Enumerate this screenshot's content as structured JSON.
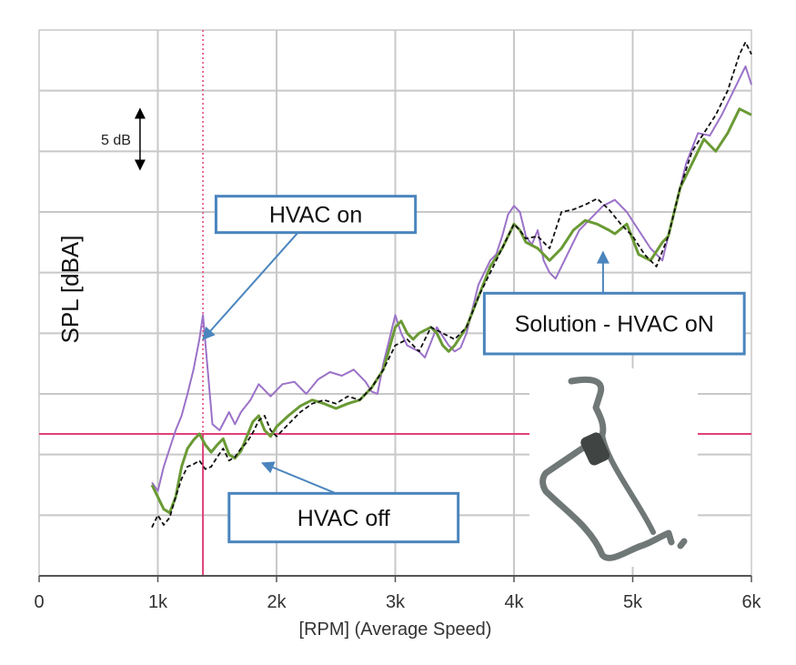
{
  "chart_data": {
    "type": "line",
    "xlabel": "[RPM] (Average Speed)",
    "ylabel": "SPL [dBA]",
    "xlim": [
      0,
      6000
    ],
    "x_tick_labels": [
      "0",
      "1k",
      "2k",
      "3k",
      "4k",
      "5k",
      "6k"
    ],
    "x_ticks": [
      0,
      1000,
      2000,
      3000,
      4000,
      5000,
      6000
    ],
    "ylim": [
      0,
      45
    ],
    "y_ticks_unlabeled": [
      5,
      10,
      15,
      20,
      25,
      30,
      35,
      40,
      45
    ],
    "grid": true,
    "scale_bar": {
      "label": "5 dB",
      "from": 38.5,
      "to": 33.5,
      "x": 850
    },
    "reference_lines": {
      "vertical_rpm": 1380,
      "horizontal_spl": 11.7
    },
    "series": [
      {
        "color": "#9b72c8",
        "style": "solid",
        "points": [
          [
            950,
            7.7
          ],
          [
            1000,
            7
          ],
          [
            1050,
            9
          ],
          [
            1100,
            10.5
          ],
          [
            1150,
            12
          ],
          [
            1200,
            13.2
          ],
          [
            1250,
            15
          ],
          [
            1300,
            17
          ],
          [
            1350,
            19.5
          ],
          [
            1380,
            21.5
          ],
          [
            1420,
            17
          ],
          [
            1460,
            12.5
          ],
          [
            1520,
            12
          ],
          [
            1600,
            13.5
          ],
          [
            1650,
            12.5
          ],
          [
            1700,
            13.5
          ],
          [
            1780,
            14.5
          ],
          [
            1850,
            15.8
          ],
          [
            1950,
            14.8
          ],
          [
            2050,
            15.8
          ],
          [
            2150,
            16
          ],
          [
            2250,
            15
          ],
          [
            2350,
            16.2
          ],
          [
            2450,
            16.8
          ],
          [
            2550,
            16.5
          ],
          [
            2650,
            17
          ],
          [
            2750,
            16
          ],
          [
            2800,
            15.2
          ],
          [
            2850,
            15
          ],
          [
            2900,
            17.5
          ],
          [
            2950,
            19.5
          ],
          [
            3000,
            21.5
          ],
          [
            3050,
            20
          ],
          [
            3100,
            19
          ],
          [
            3200,
            18.5
          ],
          [
            3250,
            18
          ],
          [
            3350,
            20.5
          ],
          [
            3450,
            19
          ],
          [
            3500,
            18.5
          ],
          [
            3550,
            18.8
          ],
          [
            3600,
            20
          ],
          [
            3700,
            24
          ],
          [
            3800,
            26
          ],
          [
            3850,
            26.5
          ],
          [
            3900,
            28
          ],
          [
            3950,
            29.8
          ],
          [
            4000,
            30.5
          ],
          [
            4050,
            30
          ],
          [
            4100,
            28
          ],
          [
            4150,
            27.3
          ],
          [
            4200,
            28.5
          ],
          [
            4250,
            26
          ],
          [
            4300,
            25
          ],
          [
            4350,
            24.5
          ],
          [
            4450,
            26.5
          ],
          [
            4550,
            28.5
          ],
          [
            4650,
            29.5
          ],
          [
            4750,
            30.5
          ],
          [
            4850,
            31
          ],
          [
            4950,
            30
          ],
          [
            5050,
            28.5
          ],
          [
            5150,
            27
          ],
          [
            5250,
            26
          ],
          [
            5300,
            28
          ],
          [
            5350,
            30
          ],
          [
            5450,
            34
          ],
          [
            5550,
            36.5
          ],
          [
            5650,
            36.3
          ],
          [
            5750,
            38
          ],
          [
            5850,
            40
          ],
          [
            5950,
            42
          ],
          [
            6000,
            40.5
          ]
        ]
      },
      {
        "color": "#6a9a35",
        "style": "solid",
        "points": [
          [
            950,
            7.5
          ],
          [
            1000,
            6.5
          ],
          [
            1050,
            5.5
          ],
          [
            1100,
            5.2
          ],
          [
            1150,
            6.5
          ],
          [
            1200,
            9
          ],
          [
            1250,
            10.5
          ],
          [
            1300,
            11.2
          ],
          [
            1350,
            11.7
          ],
          [
            1400,
            10.8
          ],
          [
            1450,
            10.2
          ],
          [
            1500,
            10.8
          ],
          [
            1550,
            11.3
          ],
          [
            1600,
            10
          ],
          [
            1650,
            9.7
          ],
          [
            1700,
            10.3
          ],
          [
            1750,
            11.5
          ],
          [
            1800,
            12.7
          ],
          [
            1850,
            13.2
          ],
          [
            1900,
            12
          ],
          [
            1950,
            11.5
          ],
          [
            2000,
            12.3
          ],
          [
            2100,
            13.2
          ],
          [
            2200,
            14
          ],
          [
            2300,
            14.5
          ],
          [
            2400,
            14.2
          ],
          [
            2500,
            13.8
          ],
          [
            2600,
            14.2
          ],
          [
            2700,
            14.5
          ],
          [
            2800,
            15.5
          ],
          [
            2900,
            17
          ],
          [
            3000,
            20.5
          ],
          [
            3050,
            21
          ],
          [
            3100,
            20
          ],
          [
            3150,
            19.5
          ],
          [
            3200,
            20
          ],
          [
            3300,
            20.5
          ],
          [
            3350,
            20
          ],
          [
            3400,
            19
          ],
          [
            3450,
            18.5
          ],
          [
            3500,
            19
          ],
          [
            3600,
            20.5
          ],
          [
            3700,
            23
          ],
          [
            3800,
            25.5
          ],
          [
            3900,
            27
          ],
          [
            4000,
            29
          ],
          [
            4050,
            28.5
          ],
          [
            4100,
            27.5
          ],
          [
            4200,
            27
          ],
          [
            4300,
            26
          ],
          [
            4400,
            27
          ],
          [
            4500,
            28.5
          ],
          [
            4600,
            29.3
          ],
          [
            4700,
            29
          ],
          [
            4800,
            28.5
          ],
          [
            4850,
            28.2
          ],
          [
            4950,
            29
          ],
          [
            5050,
            26.5
          ],
          [
            5150,
            26
          ],
          [
            5250,
            27.5
          ],
          [
            5300,
            28
          ],
          [
            5400,
            32
          ],
          [
            5500,
            34
          ],
          [
            5600,
            36
          ],
          [
            5700,
            35
          ],
          [
            5800,
            36.5
          ],
          [
            5900,
            38.5
          ],
          [
            6000,
            38
          ]
        ]
      },
      {
        "color": "#111111",
        "style": "dashed",
        "points": [
          [
            950,
            4
          ],
          [
            1000,
            5
          ],
          [
            1050,
            4.2
          ],
          [
            1100,
            4.8
          ],
          [
            1150,
            6.5
          ],
          [
            1200,
            8
          ],
          [
            1250,
            9
          ],
          [
            1300,
            9.2
          ],
          [
            1350,
            9.5
          ],
          [
            1400,
            8.8
          ],
          [
            1450,
            9
          ],
          [
            1500,
            9.8
          ],
          [
            1550,
            10.5
          ],
          [
            1600,
            9.5
          ],
          [
            1650,
            9.8
          ],
          [
            1700,
            10.5
          ],
          [
            1750,
            11
          ],
          [
            1800,
            11.8
          ],
          [
            1850,
            12.8
          ],
          [
            1900,
            13.2
          ],
          [
            1950,
            12
          ],
          [
            2000,
            11.5
          ],
          [
            2100,
            12.5
          ],
          [
            2200,
            13.5
          ],
          [
            2300,
            14.2
          ],
          [
            2400,
            14.5
          ],
          [
            2500,
            14.2
          ],
          [
            2600,
            14.8
          ],
          [
            2700,
            14.5
          ],
          [
            2800,
            15.5
          ],
          [
            2900,
            17
          ],
          [
            3000,
            19
          ],
          [
            3100,
            19.5
          ],
          [
            3200,
            18.5
          ],
          [
            3300,
            20.5
          ],
          [
            3400,
            20
          ],
          [
            3500,
            19.5
          ],
          [
            3600,
            20.5
          ],
          [
            3700,
            23
          ],
          [
            3800,
            25
          ],
          [
            3900,
            27
          ],
          [
            4000,
            29
          ],
          [
            4050,
            28.5
          ],
          [
            4100,
            27.8
          ],
          [
            4200,
            28
          ],
          [
            4300,
            27
          ],
          [
            4400,
            30
          ],
          [
            4500,
            30.2
          ],
          [
            4600,
            30.6
          ],
          [
            4700,
            31.1
          ],
          [
            4800,
            30.2
          ],
          [
            4900,
            29
          ],
          [
            5000,
            28
          ],
          [
            5100,
            26.5
          ],
          [
            5200,
            25.5
          ],
          [
            5300,
            28
          ],
          [
            5400,
            32
          ],
          [
            5500,
            35
          ],
          [
            5600,
            36.5
          ],
          [
            5700,
            38
          ],
          [
            5800,
            40
          ],
          [
            5900,
            43
          ],
          [
            5950,
            44
          ],
          [
            6000,
            43
          ]
        ]
      }
    ],
    "annotations": [
      {
        "id": "hvac-on",
        "text": "HVAC on",
        "box": {
          "x1": 1490,
          "y1": 31.3,
          "x2": 3170,
          "y2": 28.3
        },
        "arrow_from": [
          2180,
          28.3
        ],
        "arrow_to": [
          1380,
          19.5
        ]
      },
      {
        "id": "hvac-off",
        "text": "HVAC off",
        "box": {
          "x1": 1600,
          "y1": 6.8,
          "x2": 3530,
          "y2": 2.8
        },
        "arrow_from": [
          2500,
          6.8
        ],
        "arrow_to": [
          1880,
          9.3
        ]
      },
      {
        "id": "solution",
        "text": "Solution - HVAC oN",
        "box": {
          "x1": 3750,
          "y1": 23.3,
          "x2": 5940,
          "y2": 18.3
        },
        "arrow_from": [
          4750,
          23.3
        ],
        "arrow_to": [
          4750,
          26.7
        ]
      }
    ]
  }
}
